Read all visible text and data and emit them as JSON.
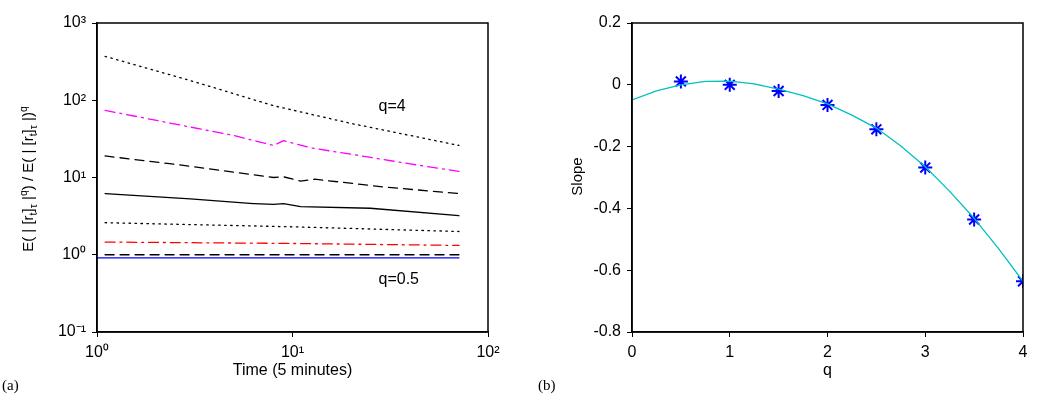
{
  "chart_data": [
    {
      "type": "line",
      "xlabel": "Time (5 minutes)",
      "ylabel": "E( | [r$_{t}$]$_{τ}$ |$^{q}$) / E( | [r$_{t}$]$_{τ}$ |)$^{q}$",
      "log": "xy",
      "marker": "none",
      "xlim": [
        1,
        100
      ],
      "xticks": [
        {
          "value": 1,
          "label": "10⁰"
        },
        {
          "value": 10,
          "label": "10¹"
        },
        {
          "value": 100,
          "label": "10²"
        }
      ],
      "ylim": [
        0.1,
        1000
      ],
      "yticks": [
        {
          "value": 0.1,
          "label": "10⁻¹"
        },
        {
          "value": 1,
          "label": "10⁰"
        },
        {
          "value": 10,
          "label": "10¹"
        },
        {
          "value": 100,
          "label": "10²"
        },
        {
          "value": 1000,
          "label": "10³"
        }
      ],
      "series": [
        {
          "color": "#000000",
          "line_style": "dotted",
          "x": [
            1.1,
            3,
            8,
            20,
            40,
            71
          ],
          "values": [
            370,
            180,
            85,
            50,
            35,
            26
          ]
        },
        {
          "color": "#ff00ff",
          "line_style": "dashdot",
          "x": [
            1.1,
            3,
            5,
            8,
            9,
            12.6,
            20,
            40,
            71
          ],
          "values": [
            74,
            45,
            35,
            26,
            30,
            24,
            20,
            15,
            12
          ]
        },
        {
          "color": "#000000",
          "line_style": "dashed",
          "x": [
            1.1,
            3,
            8,
            9,
            11,
            13,
            30,
            71
          ],
          "values": [
            19,
            14,
            10,
            10.2,
            9,
            9.5,
            7.5,
            6.2
          ]
        },
        {
          "color": "#000000",
          "line_style": "solid",
          "x": [
            1.1,
            3,
            6.3,
            8,
            9,
            11,
            25,
            71
          ],
          "values": [
            6.2,
            5.3,
            4.6,
            4.5,
            4.6,
            4.2,
            4,
            3.2
          ]
        },
        {
          "color": "#000000",
          "line_style": "dotted",
          "x": [
            1.1,
            10,
            71
          ],
          "values": [
            2.6,
            2.3,
            2.0
          ]
        },
        {
          "color": "#ff0000",
          "line_style": "dashdot",
          "x": [
            1.1,
            10,
            71
          ],
          "values": [
            1.46,
            1.4,
            1.32
          ]
        },
        {
          "color": "#000000",
          "line_style": "dashed",
          "x": [
            1.1,
            71
          ],
          "values": [
            1.0,
            1.0
          ]
        },
        {
          "color": "#0000ff",
          "line_style": "solid",
          "x": [
            1,
            71
          ],
          "values": [
            0.91,
            0.91
          ]
        }
      ],
      "annotations": [
        "q=4",
        "q=0.5",
        "(a)"
      ]
    },
    {
      "type": "scatter",
      "xlabel": "q",
      "ylabel": "Slope",
      "xlim": [
        0,
        4
      ],
      "xticks": [
        0,
        1,
        2,
        3,
        4
      ],
      "ylim": [
        -0.8,
        0.2
      ],
      "yticks": [
        -0.8,
        -0.6,
        -0.4,
        -0.2,
        0,
        0.2
      ],
      "series": [
        {
          "type": "line",
          "color": "#00c0c0",
          "marker": "none",
          "line_style": "solid",
          "x": [
            0,
            0.25,
            0.5,
            0.75,
            1,
            1.25,
            1.5,
            1.75,
            2,
            2.25,
            2.5,
            2.75,
            3,
            3.25,
            3.5,
            3.75,
            4
          ],
          "values": [
            -0.049,
            -0.02,
            0.0,
            0.011,
            0.012,
            0.003,
            -0.014,
            -0.035,
            -0.062,
            -0.098,
            -0.14,
            -0.198,
            -0.265,
            -0.345,
            -0.432,
            -0.53,
            -0.636
          ]
        },
        {
          "color": "#0000ff",
          "marker": "cross",
          "x": [
            0.5,
            1,
            1.5,
            2,
            2.5,
            3,
            3.5,
            4
          ],
          "values": [
            0.011,
            0.0,
            -0.02,
            -0.065,
            -0.144,
            -0.268,
            -0.436,
            -0.636
          ]
        }
      ],
      "annotations": [
        "(b)"
      ]
    }
  ]
}
